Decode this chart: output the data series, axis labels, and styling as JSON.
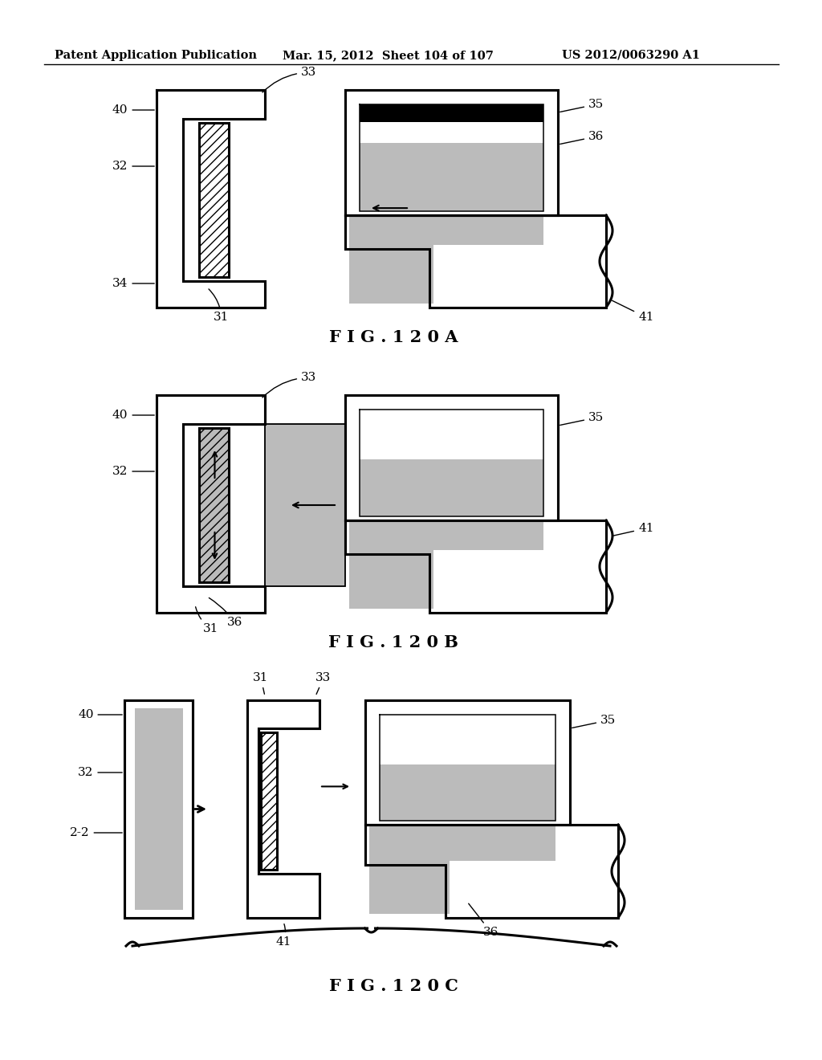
{
  "bg_color": "#ffffff",
  "header_left": "Patent Application Publication",
  "header_mid": "Mar. 15, 2012  Sheet 104 of 107",
  "header_right": "US 2012/0063290 A1",
  "fig_label_A": "F I G . 1 2 0 A",
  "fig_label_B": "F I G . 1 2 0 B",
  "fig_label_C": "F I G . 1 2 0 C",
  "line_color": "#000000",
  "dot_fill": "#bbbbbb",
  "lw": 2.2,
  "lw_thin": 1.2
}
